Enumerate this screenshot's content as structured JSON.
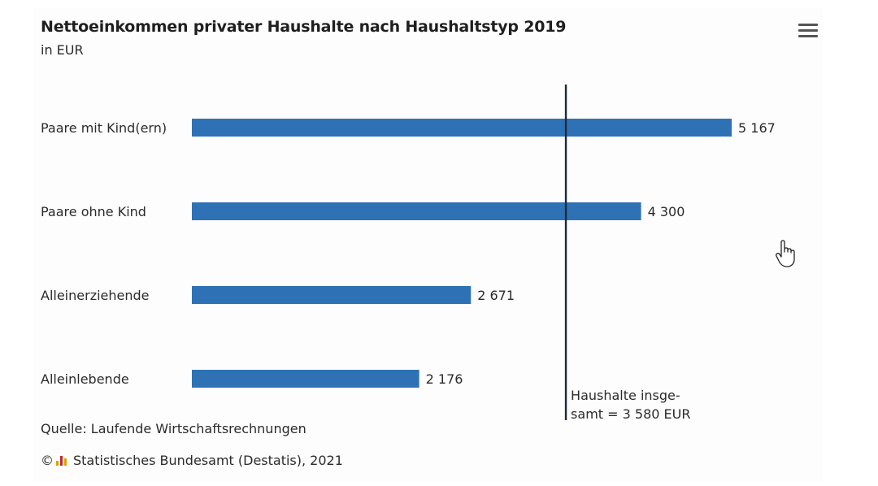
{
  "chart_data": {
    "type": "bar",
    "orientation": "horizontal",
    "title": "Nettoeinkommen privater Haushalte nach Haushaltstyp 2019",
    "subtitle": "in EUR",
    "categories": [
      "Paare mit Kind(ern)",
      "Paare ohne Kind",
      "Alleinerziehende",
      "Alleinlebende"
    ],
    "values": [
      5167,
      4300,
      2671,
      2176
    ],
    "value_labels": [
      "5 167",
      "4 300",
      "2 671",
      "2 176"
    ],
    "xlim": [
      0,
      5167
    ],
    "reference_line": {
      "value": 3580,
      "label_lines": [
        "Haushalte insge-",
        "samt = 3 580 EUR"
      ]
    },
    "source": "Quelle: Laufende Wirtschaftsrechnungen",
    "copyright": "Statistisches Bundesamt (Destatis), 2021",
    "grid": false,
    "legend": "none"
  },
  "colors": {
    "bar": "#2e72b5",
    "reference_line": "#1e2a3a",
    "text": "#1f1f1f",
    "logo": [
      "#d9a300",
      "#c0272d",
      "#d9a300"
    ]
  },
  "icons": {
    "menu": "hamburger-menu-icon",
    "cursor": "hand-pointer-cursor",
    "logo": "destatis-logo"
  }
}
